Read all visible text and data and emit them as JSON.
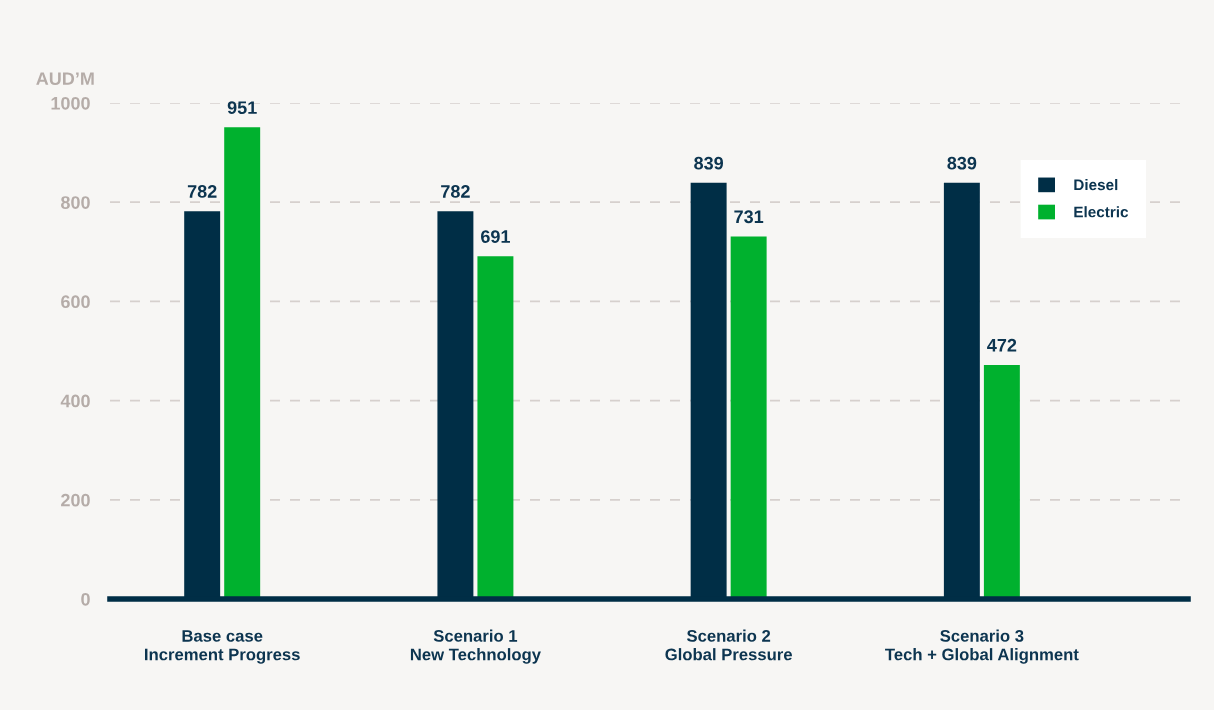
{
  "chart_data": {
    "type": "bar",
    "ylabel": "AUD’M",
    "categories": [
      "Base case\nIncrement Progress",
      "Scenario 1\nNew Technology",
      "Scenario 2\nGlobal Pressure",
      "Scenario 3\nTech + Global Alignment"
    ],
    "series": [
      {
        "name": "Diesel",
        "color": "#002e46",
        "values": [
          782,
          782,
          839,
          839
        ]
      },
      {
        "name": "Electric",
        "color": "#00b12e",
        "values": [
          951,
          691,
          731,
          472
        ]
      }
    ],
    "ylim": [
      0,
      1000
    ],
    "yticks": [
      0,
      200,
      400,
      600,
      800,
      1000
    ],
    "grid": "y",
    "legend": "top right",
    "data_labels": true
  }
}
